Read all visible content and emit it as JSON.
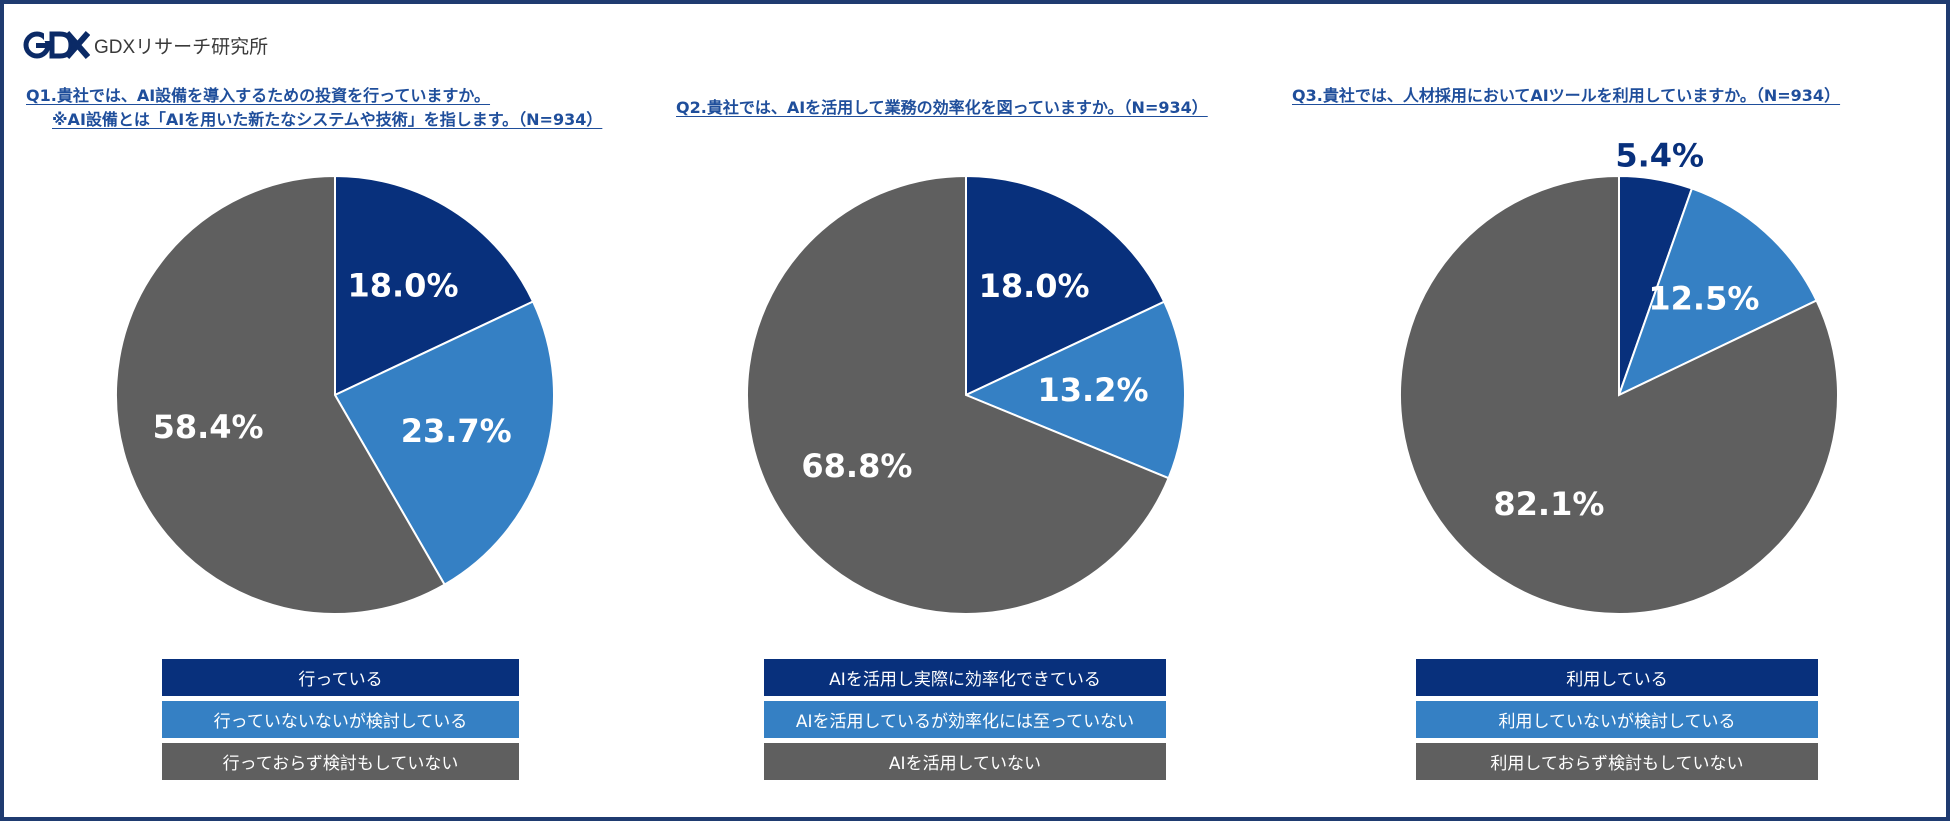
{
  "brand": {
    "logo_text": "GDX",
    "name": "GDXリサーチ研究所"
  },
  "colors": {
    "dark_blue": "#08307c",
    "mid_blue": "#3580c4",
    "gray": "#5f5f5f",
    "title_blue": "#1f4e9b"
  },
  "chart_data": [
    {
      "type": "pie",
      "title_lines": [
        "Q1.貴社では、AI設備を導入するための投資を行っていますか。",
        "※AI設備とは「AIを用いた新たなシステムや技術」を指します。（N=934）"
      ],
      "legend": [
        "行っている",
        "行っていないないが検討している",
        "行っておらず検討もしていない"
      ],
      "values": [
        18.0,
        23.7,
        58.4
      ],
      "labels": [
        "18.0%",
        "23.7%",
        "58.4%"
      ],
      "colors": [
        "#08307c",
        "#3580c4",
        "#5f5f5f"
      ]
    },
    {
      "type": "pie",
      "title_lines": [
        "Q2.貴社では、AIを活用して業務の効率化を図っていますか。（N=934）"
      ],
      "legend": [
        "AIを活用し実際に効率化できている",
        "AIを活用しているが効率化には至っていない",
        "AIを活用していない"
      ],
      "values": [
        18.0,
        13.2,
        68.8
      ],
      "labels": [
        "18.0%",
        "13.2%",
        "68.8%"
      ],
      "colors": [
        "#08307c",
        "#3580c4",
        "#5f5f5f"
      ]
    },
    {
      "type": "pie",
      "title_lines": [
        "Q3.貴社では、人材採用においてAIツールを利用していますか。（N=934）"
      ],
      "legend": [
        "利用している",
        "利用していないが検討している",
        "利用しておらず検討もしていない"
      ],
      "values": [
        5.4,
        12.5,
        82.1
      ],
      "labels": [
        "5.4%",
        "12.5%",
        "82.1%"
      ],
      "colors": [
        "#08307c",
        "#3580c4",
        "#5f5f5f"
      ]
    }
  ]
}
